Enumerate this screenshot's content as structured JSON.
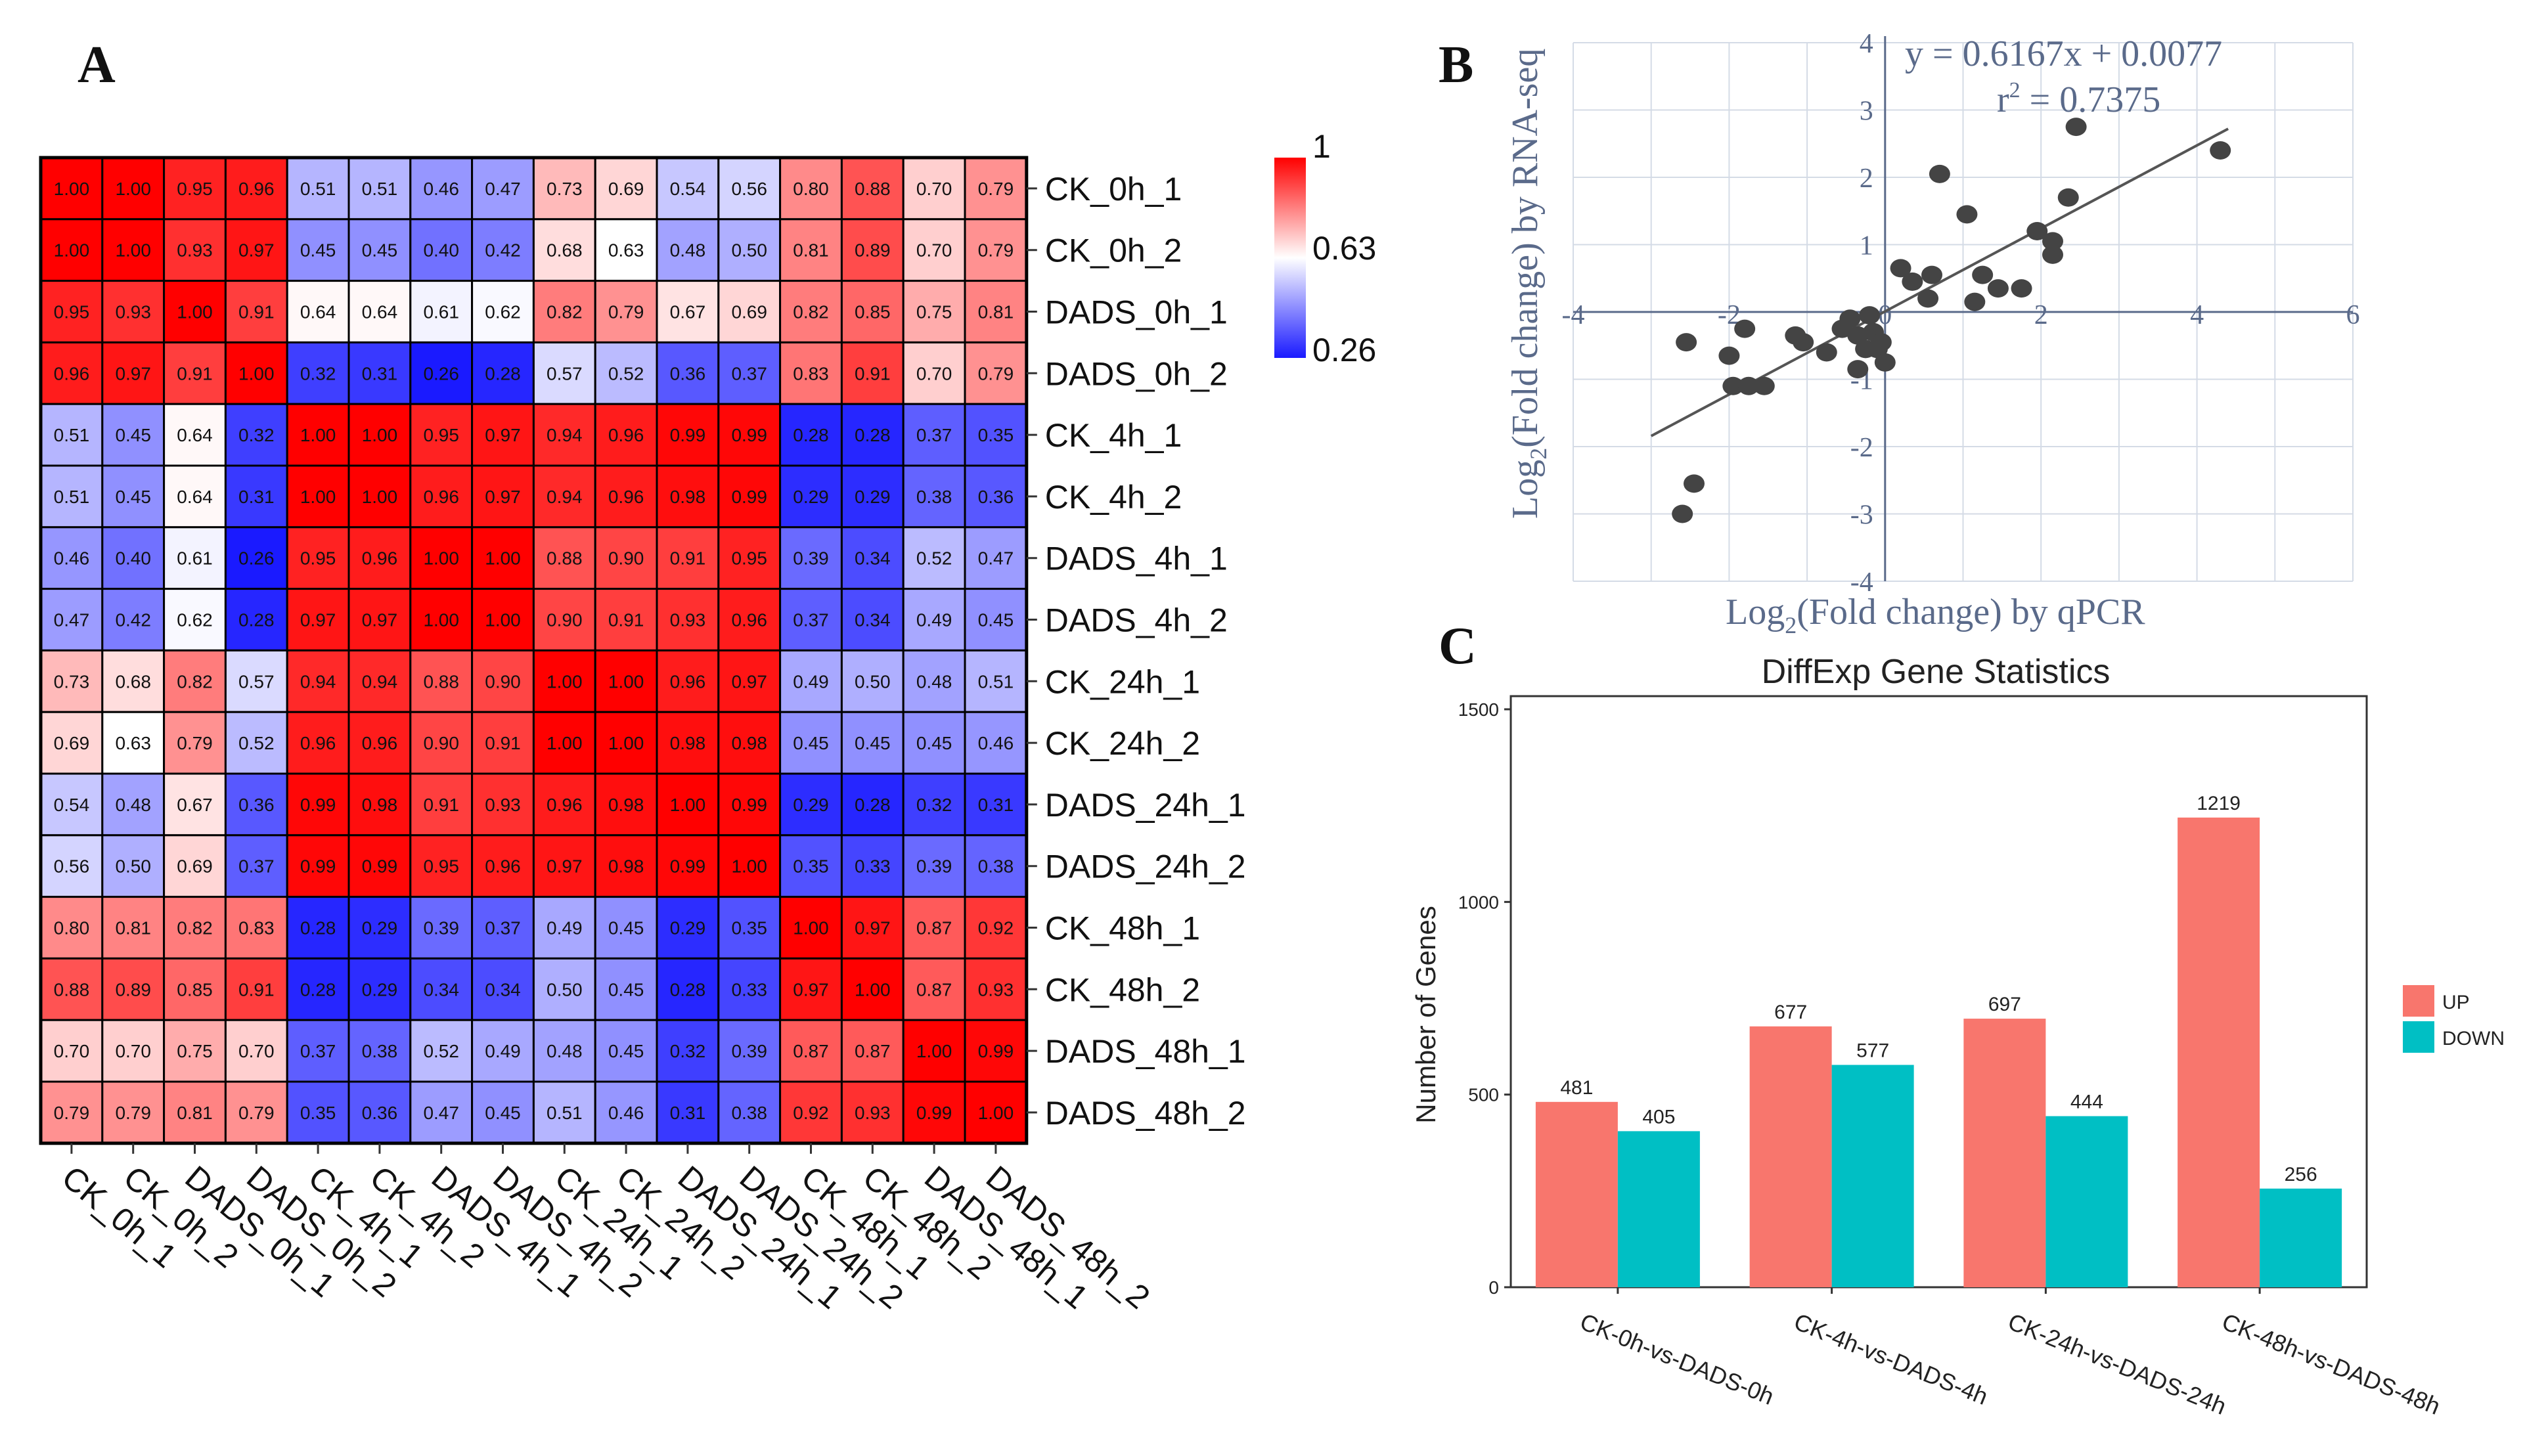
{
  "panels": {
    "a": "A",
    "b": "B",
    "c": "C"
  },
  "colors": {
    "high": "#ff0000",
    "mid": "#ffffff",
    "low": "#1a1aff",
    "up": "#f8766d",
    "down": "#00bfc4",
    "scatter_point": "#444444",
    "scatter_axis": "#5a6a8a"
  },
  "chart_data": [
    {
      "type": "heatmap",
      "title": "",
      "row_labels": [
        "CK_0h_1",
        "CK_0h_2",
        "DADS_0h_1",
        "DADS_0h_2",
        "CK_4h_1",
        "CK_4h_2",
        "DADS_4h_1",
        "DADS_4h_2",
        "CK_24h_1",
        "CK_24h_2",
        "DADS_24h_1",
        "DADS_24h_2",
        "CK_48h_1",
        "CK_48h_2",
        "DADS_48h_1",
        "DADS_48h_2"
      ],
      "col_labels": [
        "CK_0h_1",
        "CK_0h_2",
        "DADS_0h_1",
        "DADS_0h_2",
        "CK_4h_1",
        "CK_4h_2",
        "DADS_4h_1",
        "DADS_4h_2",
        "CK_24h_1",
        "CK_24h_2",
        "DADS_24h_1",
        "DADS_24h_2",
        "CK_48h_1",
        "CK_48h_2",
        "DADS_48h_1",
        "DADS_48h_2"
      ],
      "values": [
        [
          "1.00",
          "1.00",
          "0.95",
          "0.96",
          "0.51",
          "0.51",
          "0.46",
          "0.47",
          "0.73",
          "0.69",
          "0.54",
          "0.56",
          "0.80",
          "0.88",
          "0.70",
          "0.79"
        ],
        [
          "1.00",
          "1.00",
          "0.93",
          "0.97",
          "0.45",
          "0.45",
          "0.40",
          "0.42",
          "0.68",
          "0.63",
          "0.48",
          "0.50",
          "0.81",
          "0.89",
          "0.70",
          "0.79"
        ],
        [
          "0.95",
          "0.93",
          "1.00",
          "0.91",
          "0.64",
          "0.64",
          "0.61",
          "0.62",
          "0.82",
          "0.79",
          "0.67",
          "0.69",
          "0.82",
          "0.85",
          "0.75",
          "0.81"
        ],
        [
          "0.96",
          "0.97",
          "0.91",
          "1.00",
          "0.32",
          "0.31",
          "0.26",
          "0.28",
          "0.57",
          "0.52",
          "0.36",
          "0.37",
          "0.83",
          "0.91",
          "0.70",
          "0.79"
        ],
        [
          "0.51",
          "0.45",
          "0.64",
          "0.32",
          "1.00",
          "1.00",
          "0.95",
          "0.97",
          "0.94",
          "0.96",
          "0.99",
          "0.99",
          "0.28",
          "0.28",
          "0.37",
          "0.35"
        ],
        [
          "0.51",
          "0.45",
          "0.64",
          "0.31",
          "1.00",
          "1.00",
          "0.96",
          "0.97",
          "0.94",
          "0.96",
          "0.98",
          "0.99",
          "0.29",
          "0.29",
          "0.38",
          "0.36"
        ],
        [
          "0.46",
          "0.40",
          "0.61",
          "0.26",
          "0.95",
          "0.96",
          "1.00",
          "1.00",
          "0.88",
          "0.90",
          "0.91",
          "0.95",
          "0.39",
          "0.34",
          "0.52",
          "0.47"
        ],
        [
          "0.47",
          "0.42",
          "0.62",
          "0.28",
          "0.97",
          "0.97",
          "1.00",
          "1.00",
          "0.90",
          "0.91",
          "0.93",
          "0.96",
          "0.37",
          "0.34",
          "0.49",
          "0.45"
        ],
        [
          "0.73",
          "0.68",
          "0.82",
          "0.57",
          "0.94",
          "0.94",
          "0.88",
          "0.90",
          "1.00",
          "1.00",
          "0.96",
          "0.97",
          "0.49",
          "0.50",
          "0.48",
          "0.51"
        ],
        [
          "0.69",
          "0.63",
          "0.79",
          "0.52",
          "0.96",
          "0.96",
          "0.90",
          "0.91",
          "1.00",
          "1.00",
          "0.98",
          "0.98",
          "0.45",
          "0.45",
          "0.45",
          "0.46"
        ],
        [
          "0.54",
          "0.48",
          "0.67",
          "0.36",
          "0.99",
          "0.98",
          "0.91",
          "0.93",
          "0.96",
          "0.98",
          "1.00",
          "0.99",
          "0.29",
          "0.28",
          "0.32",
          "0.31"
        ],
        [
          "0.56",
          "0.50",
          "0.69",
          "0.37",
          "0.99",
          "0.99",
          "0.95",
          "0.96",
          "0.97",
          "0.98",
          "0.99",
          "1.00",
          "0.35",
          "0.33",
          "0.39",
          "0.38"
        ],
        [
          "0.80",
          "0.81",
          "0.82",
          "0.83",
          "0.28",
          "0.29",
          "0.39",
          "0.37",
          "0.49",
          "0.45",
          "0.29",
          "0.35",
          "1.00",
          "0.97",
          "0.87",
          "0.92"
        ],
        [
          "0.88",
          "0.89",
          "0.85",
          "0.91",
          "0.28",
          "0.29",
          "0.34",
          "0.34",
          "0.50",
          "0.45",
          "0.28",
          "0.33",
          "0.97",
          "1.00",
          "0.87",
          "0.93"
        ],
        [
          "0.70",
          "0.70",
          "0.75",
          "0.70",
          "0.37",
          "0.38",
          "0.52",
          "0.49",
          "0.48",
          "0.45",
          "0.32",
          "0.39",
          "0.87",
          "0.87",
          "1.00",
          "0.99"
        ],
        [
          "0.79",
          "0.79",
          "0.81",
          "0.79",
          "0.35",
          "0.36",
          "0.47",
          "0.45",
          "0.51",
          "0.46",
          "0.31",
          "0.38",
          "0.92",
          "0.93",
          "0.99",
          "1.00"
        ]
      ],
      "colorbar": {
        "ticks": [
          "1",
          "0.63",
          "0.26"
        ],
        "range": [
          0.26,
          1
        ],
        "mid": 0.63
      }
    },
    {
      "type": "scatter",
      "title": "",
      "xlabel_pre": "Log",
      "xlabel_sub": "2",
      "xlabel_post": "(Fold change)  by qPCR",
      "ylabel_pre": "Log",
      "ylabel_sub": "2",
      "ylabel_post": "(Fold change)  by RNA-seq",
      "equation": "y = 0.6167x + 0.0077",
      "r2_pre": "r",
      "r2_sup": "2",
      "r2_post": " = 0.7375",
      "xlim": [
        -4,
        6
      ],
      "ylim": [
        -4,
        4
      ],
      "xticks": [
        "-4",
        "-2",
        "0",
        "2",
        "4",
        "6"
      ],
      "yticks": [
        "4",
        "3",
        "2",
        "1",
        "-1",
        "-2",
        "-3",
        "-4"
      ],
      "fit": {
        "slope": 0.6167,
        "intercept": 0.0077,
        "x_range": [
          -3,
          4.4
        ]
      },
      "points": [
        {
          "x": -2.6,
          "y": -3.0
        },
        {
          "x": -2.45,
          "y": -2.55
        },
        {
          "x": -2.55,
          "y": -0.45
        },
        {
          "x": -2.0,
          "y": -0.65
        },
        {
          "x": -1.95,
          "y": -1.1
        },
        {
          "x": -1.8,
          "y": -0.25
        },
        {
          "x": -1.75,
          "y": -1.1
        },
        {
          "x": -1.55,
          "y": -1.1
        },
        {
          "x": -1.15,
          "y": -0.35
        },
        {
          "x": -1.05,
          "y": -0.45
        },
        {
          "x": -0.75,
          "y": -0.6
        },
        {
          "x": -0.55,
          "y": -0.25
        },
        {
          "x": -0.45,
          "y": -0.1
        },
        {
          "x": -0.35,
          "y": -0.35
        },
        {
          "x": -0.35,
          "y": -0.85
        },
        {
          "x": -0.25,
          "y": -0.55
        },
        {
          "x": -0.2,
          "y": -0.05
        },
        {
          "x": -0.15,
          "y": -0.3
        },
        {
          "x": -0.05,
          "y": -0.45
        },
        {
          "x": -0.1,
          "y": -0.55
        },
        {
          "x": 0.0,
          "y": -0.75
        },
        {
          "x": 0.2,
          "y": 0.65
        },
        {
          "x": 0.35,
          "y": 0.45
        },
        {
          "x": 0.55,
          "y": 0.2
        },
        {
          "x": 0.6,
          "y": 0.55
        },
        {
          "x": 0.7,
          "y": 2.05
        },
        {
          "x": 1.05,
          "y": 1.45
        },
        {
          "x": 1.15,
          "y": 0.15
        },
        {
          "x": 1.25,
          "y": 0.55
        },
        {
          "x": 1.45,
          "y": 0.35
        },
        {
          "x": 1.75,
          "y": 0.35
        },
        {
          "x": 1.95,
          "y": 1.2
        },
        {
          "x": 2.15,
          "y": 0.85
        },
        {
          "x": 2.15,
          "y": 1.05
        },
        {
          "x": 2.35,
          "y": 1.7
        },
        {
          "x": 2.45,
          "y": 2.75
        },
        {
          "x": 4.3,
          "y": 2.4
        }
      ]
    },
    {
      "type": "bar",
      "title": "DiffExp Gene Statistics",
      "xlabel": "",
      "ylabel": "Number of Genes",
      "ylim": [
        0,
        1500
      ],
      "yticks": [
        "0",
        "500",
        "1000",
        "1500"
      ],
      "categories": [
        "CK-0h-vs-DADS-0h",
        "CK-4h-vs-DADS-4h",
        "CK-24h-vs-DADS-24h",
        "CK-48h-vs-DADS-48h"
      ],
      "series": [
        {
          "name": "UP",
          "values": [
            481,
            677,
            697,
            1219
          ]
        },
        {
          "name": "DOWN",
          "values": [
            405,
            577,
            444,
            256
          ]
        }
      ]
    }
  ]
}
